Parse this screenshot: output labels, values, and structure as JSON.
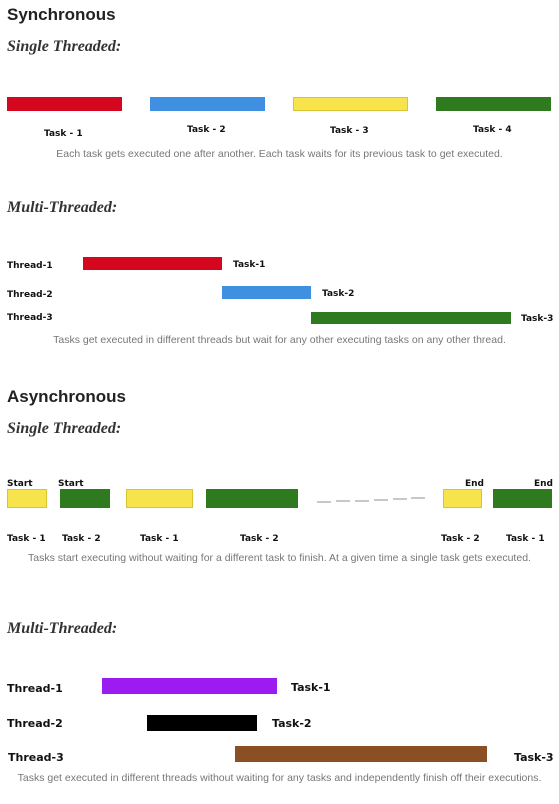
{
  "sync": {
    "heading": "Synchronous",
    "single": {
      "title": "Single Threaded:",
      "tasks": [
        {
          "label": "Task - 1",
          "color": "#d4071f"
        },
        {
          "label": "Task - 2",
          "color": "#3f90e0"
        },
        {
          "label": "Task - 3",
          "color": "#f7e34b"
        },
        {
          "label": "Task - 4",
          "color": "#2f7a1e"
        }
      ],
      "caption": "Each task gets executed one after another. Each task waits for its previous task to get executed."
    },
    "multi": {
      "title": "Multi-Threaded:",
      "rows": [
        {
          "thread": "Thread-1",
          "task": "Task-1",
          "color": "#d4071f"
        },
        {
          "thread": "Thread-2",
          "task": "Task-2",
          "color": "#3f90e0"
        },
        {
          "thread": "Thread-3",
          "task": "Task-3",
          "color": "#2f7a1e"
        }
      ],
      "caption": "Tasks get executed in different threads but wait for any other executing tasks on any other thread."
    }
  },
  "async": {
    "heading": "Asynchronous",
    "single": {
      "title": "Single Threaded:",
      "start_label": "Start",
      "end_label": "End",
      "blocks": [
        {
          "label": "Task - 1",
          "color": "#f7e34b"
        },
        {
          "label": "Task - 2",
          "color": "#2f7a1e"
        },
        {
          "label": "Task - 1",
          "color": "#f7e34b"
        },
        {
          "label": "Task - 2",
          "color": "#2f7a1e"
        },
        {
          "label": "Task - 2",
          "color": "#f7e34b"
        },
        {
          "label": "Task - 1",
          "color": "#2f7a1e"
        }
      ],
      "caption": "Tasks start executing without waiting for a different task to finish. At a given time a single task gets executed."
    },
    "multi": {
      "title": "Multi-Threaded:",
      "rows": [
        {
          "thread": "Thread-1",
          "task": "Task-1",
          "color": "#9b1bf0"
        },
        {
          "thread": "Thread-2",
          "task": "Task-2",
          "color": "#000000"
        },
        {
          "thread": "Thread-3",
          "task": "Task-3",
          "color": "#8a5024"
        }
      ],
      "caption": "Tasks get executed in different threads without waiting for any tasks and independently finish off their executions."
    }
  }
}
